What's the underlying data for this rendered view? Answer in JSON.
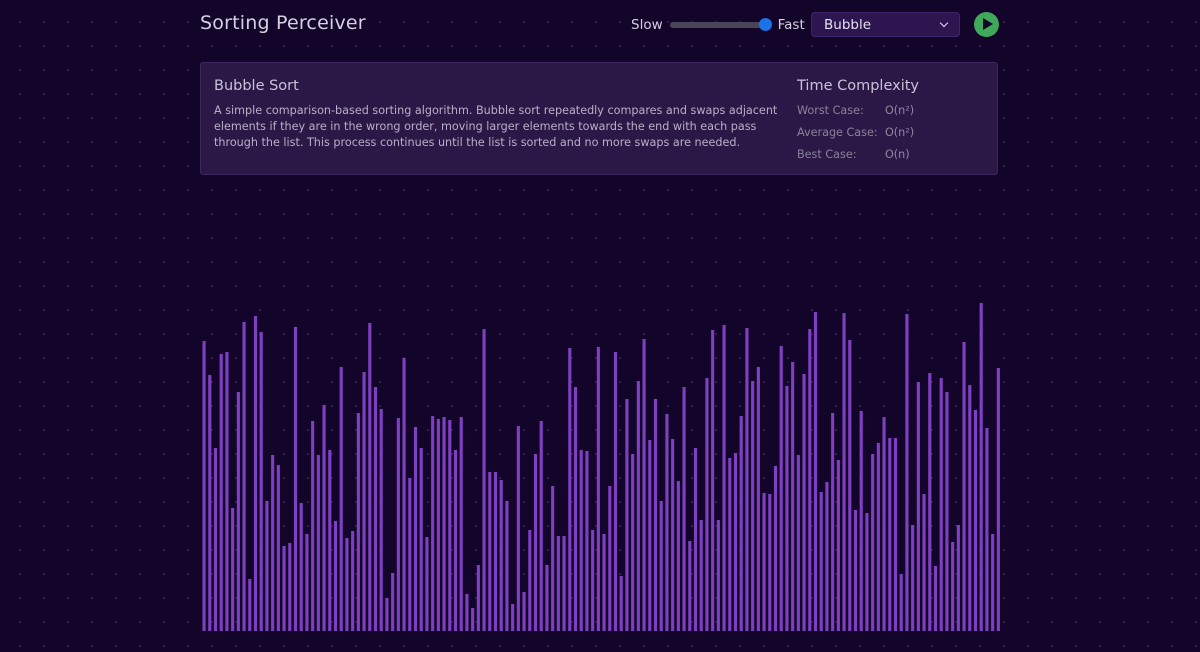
{
  "app": {
    "title": "Sorting Perceiver"
  },
  "speed": {
    "slow_label": "Slow",
    "fast_label": "Fast",
    "value": 0.95
  },
  "algorithm_select": {
    "selected": "Bubble"
  },
  "play_button": {
    "icon": "play-icon",
    "color": "#3fa85a"
  },
  "info": {
    "name": "Bubble Sort",
    "description": "A simple comparison-based sorting algorithm. Bubble sort repeatedly compares and swaps adjacent elements if they are in the wrong order, moving larger elements towards the end with each pass through the list. This process continues until the list is sorted and no more swaps are needed.",
    "complexity_title": "Time Complexity",
    "complexity": [
      {
        "label": "Worst Case:",
        "value": "O(n²)"
      },
      {
        "label": "Average Case:",
        "value": "O(n²)"
      },
      {
        "label": "Best Case:",
        "value": "O(n)"
      }
    ]
  },
  "colors": {
    "background": "#13052a",
    "panel": "#2b1847",
    "bar": "#7e3fc0",
    "slider_thumb": "#1a73e8"
  },
  "chart_data": {
    "type": "bar",
    "ylim": [
      0,
      322
    ],
    "values": [
      290,
      256,
      183,
      277,
      279,
      123,
      239,
      309,
      52,
      315,
      299,
      130,
      176,
      166,
      85,
      88,
      304,
      128,
      97,
      210,
      176,
      226,
      181,
      110,
      264,
      93,
      100,
      218,
      259,
      308,
      244,
      222,
      33,
      58,
      213,
      273,
      153,
      204,
      183,
      94,
      215,
      212,
      214,
      211,
      181,
      214,
      37,
      23,
      66,
      302,
      159,
      159,
      151,
      130,
      27,
      205,
      39,
      101,
      177,
      210,
      66,
      145,
      95,
      95,
      283,
      244,
      181,
      180,
      101,
      284,
      97,
      145,
      279,
      55,
      232,
      177,
      250,
      292,
      191,
      232,
      130,
      217,
      192,
      150,
      244,
      90,
      183,
      111,
      253,
      301,
      111,
      306,
      173,
      178,
      215,
      303,
      250,
      264,
      138,
      137,
      165,
      285,
      245,
      269,
      176,
      257,
      302,
      319,
      139,
      149,
      218,
      171,
      318,
      291,
      121,
      220,
      118,
      177,
      188,
      214,
      193,
      193,
      57,
      317,
      106,
      249,
      137,
      258,
      65,
      253,
      239,
      89,
      106,
      289,
      246,
      221,
      328,
      203,
      97,
      263
    ]
  }
}
